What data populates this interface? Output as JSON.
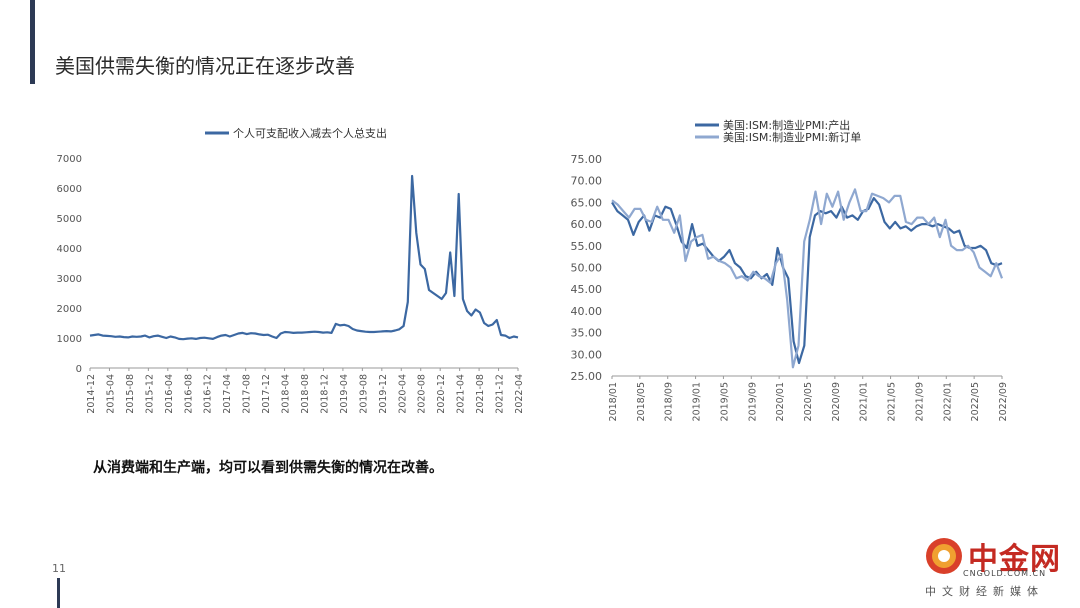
{
  "slide": {
    "title": "美国供需失衡的情况正在逐步改善",
    "caption": "从消费端和生产端，均可以看到供需失衡的情况在改善。",
    "page_number": "11"
  },
  "logo": {
    "name": "中金网",
    "domain": "CNGOLD.COM.CN",
    "subtitle": "中文财经新媒体"
  },
  "colors": {
    "accent_bar": "#2d3a55",
    "series_dark": "#3c68a2",
    "series_light": "#8fa8d0",
    "axis_text": "#555555"
  },
  "chart_data": [
    {
      "type": "line",
      "legend": [
        "个人可支配收入减去个人总支出"
      ],
      "legend_position": "top",
      "grid": false,
      "ylim": [
        0,
        7000
      ],
      "yticks": [
        "0",
        "1000",
        "2000",
        "3000",
        "4000",
        "5000",
        "6000",
        "7000"
      ],
      "xticks": [
        "2014-12",
        "2015-04",
        "2015-08",
        "2015-12",
        "2016-04",
        "2016-08",
        "2016-12",
        "2017-04",
        "2017-08",
        "2017-12",
        "2018-04",
        "2018-08",
        "2018-12",
        "2019-04",
        "2019-08",
        "2019-12",
        "2020-04",
        "2020-08",
        "2020-12",
        "2021-04",
        "2021-08",
        "2021-12",
        "2022-04"
      ],
      "series": [
        {
          "name": "个人可支配收入减去个人总支出",
          "values": [
            1080,
            1100,
            1120,
            1080,
            1070,
            1060,
            1040,
            1050,
            1030,
            1020,
            1050,
            1040,
            1050,
            1080,
            1020,
            1060,
            1080,
            1040,
            1000,
            1050,
            1020,
            970,
            960,
            980,
            990,
            970,
            1000,
            1010,
            990,
            970,
            1030,
            1080,
            1100,
            1050,
            1100,
            1150,
            1170,
            1130,
            1160,
            1150,
            1120,
            1100,
            1110,
            1050,
            1000,
            1150,
            1200,
            1190,
            1170,
            1180,
            1180,
            1190,
            1200,
            1210,
            1200,
            1180,
            1190,
            1170,
            1470,
            1420,
            1440,
            1400,
            1300,
            1250,
            1230,
            1210,
            1200,
            1200,
            1210,
            1220,
            1230,
            1220,
            1250,
            1290,
            1400,
            2200,
            6400,
            4500,
            3450,
            3300,
            2600,
            2500,
            2400,
            2300,
            2500,
            3850,
            2400,
            5800,
            2300,
            1900,
            1750,
            1950,
            1850,
            1500,
            1400,
            1450,
            1600,
            1100,
            1080,
            1000,
            1050,
            1020
          ]
        }
      ]
    },
    {
      "type": "line",
      "legend": [
        "美国:ISM:制造业PMI:产出",
        "美国:ISM:制造业PMI:新订单"
      ],
      "legend_position": "top",
      "grid": false,
      "ylim": [
        25,
        75
      ],
      "yticks": [
        "25.00",
        "30.00",
        "35.00",
        "40.00",
        "45.00",
        "50.00",
        "55.00",
        "60.00",
        "65.00",
        "70.00",
        "75.00"
      ],
      "xticks": [
        "2018/01",
        "2018/05",
        "2018/09",
        "2019/01",
        "2019/05",
        "2019/09",
        "2020/01",
        "2020/05",
        "2020/09",
        "2021/01",
        "2021/05",
        "2021/09",
        "2022/01",
        "2022/05",
        "2022/09"
      ],
      "series": [
        {
          "name": "美国:ISM:制造业PMI:产出",
          "values": [
            65,
            63,
            62,
            61,
            57.5,
            60.5,
            62,
            58.5,
            62,
            61.5,
            64,
            63.5,
            60,
            56,
            54.5,
            60,
            55,
            55.5,
            54,
            52.5,
            51.5,
            52.5,
            54,
            51,
            50,
            48,
            47.5,
            49,
            47.5,
            48.5,
            46,
            54.5,
            50,
            47.5,
            33,
            28,
            32,
            57,
            62,
            63,
            62.5,
            63,
            61.5,
            64,
            61.5,
            62,
            61,
            63,
            63.5,
            66,
            64.5,
            60.5,
            59,
            60.5,
            59,
            59.5,
            58.5,
            59.5,
            60,
            60,
            59.5,
            60,
            59.5,
            59,
            58,
            58.5,
            55,
            54.5,
            54.5,
            55,
            54,
            51,
            50.5,
            51
          ]
        },
        {
          "name": "美国:ISM:制造业PMI:新订单",
          "values": [
            65.5,
            64.5,
            63,
            61.5,
            63.5,
            63.5,
            61,
            60.5,
            64,
            61,
            61,
            58,
            62,
            51.5,
            56,
            57,
            57.5,
            52,
            52.5,
            51.5,
            51,
            50,
            47.5,
            48,
            47,
            49,
            48,
            47.5,
            46.5,
            51,
            53,
            42.5,
            27,
            32,
            56,
            61,
            67.5,
            60,
            67,
            64,
            67.5,
            61,
            65,
            68,
            63,
            63,
            67,
            66.5,
            66,
            65,
            66.5,
            66.5,
            60.5,
            60,
            61.5,
            61.5,
            60,
            61.5,
            57,
            61,
            55,
            54,
            54,
            55,
            53.5,
            50,
            49,
            48,
            51,
            47.5
          ]
        }
      ]
    }
  ]
}
